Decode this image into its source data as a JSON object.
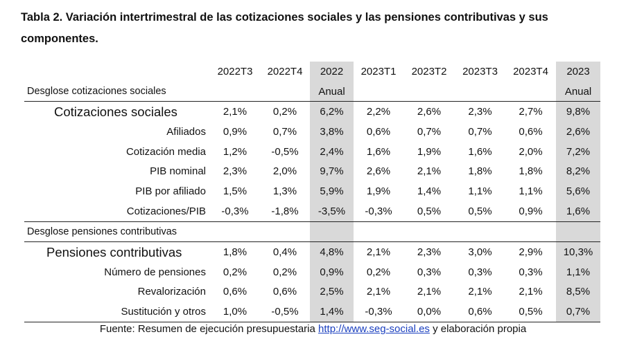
{
  "title": "Tabla 2. Variación intertrimestral de las cotizaciones sociales y las pensiones contributivas y sus componentes.",
  "columns": [
    {
      "l1": "2022T3",
      "l2": ""
    },
    {
      "l1": "2022T4",
      "l2": ""
    },
    {
      "l1": "2022",
      "l2": "Anual"
    },
    {
      "l1": "2023T1",
      "l2": ""
    },
    {
      "l1": "2023T2",
      "l2": ""
    },
    {
      "l1": "2023T3",
      "l2": ""
    },
    {
      "l1": "2023T4",
      "l2": ""
    },
    {
      "l1": "2023",
      "l2": "Anual"
    }
  ],
  "sections": [
    {
      "header": "Desglose cotizaciones sociales",
      "rows": [
        {
          "label": "Cotizaciones sociales",
          "main": true,
          "values": [
            "2,1%",
            "0,2%",
            "6,2%",
            "2,2%",
            "2,6%",
            "2,3%",
            "2,7%",
            "9,8%"
          ]
        },
        {
          "label": "Afiliados",
          "values": [
            "0,9%",
            "0,7%",
            "3,8%",
            "0,6%",
            "0,7%",
            "0,7%",
            "0,6%",
            "2,6%"
          ]
        },
        {
          "label": "Cotización media",
          "values": [
            "1,2%",
            "-0,5%",
            "2,4%",
            "1,6%",
            "1,9%",
            "1,6%",
            "2,0%",
            "7,2%"
          ]
        },
        {
          "label": "PIB nominal",
          "values": [
            "2,3%",
            "2,0%",
            "9,7%",
            "2,6%",
            "2,1%",
            "1,8%",
            "1,8%",
            "8,2%"
          ]
        },
        {
          "label": "PIB por afiliado",
          "values": [
            "1,5%",
            "1,3%",
            "5,9%",
            "1,9%",
            "1,4%",
            "1,1%",
            "1,1%",
            "5,6%"
          ]
        },
        {
          "label": "Cotizaciones/PIB",
          "values": [
            "-0,3%",
            "-1,8%",
            "-3,5%",
            "-0,3%",
            "0,5%",
            "0,5%",
            "0,9%",
            "1,6%"
          ]
        }
      ]
    },
    {
      "header": "Desglose pensiones contributivas",
      "rows": [
        {
          "label": "Pensiones contributivas",
          "main": true,
          "values": [
            "1,8%",
            "0,4%",
            "4,8%",
            "2,1%",
            "2,3%",
            "3,0%",
            "2,9%",
            "10,3%"
          ]
        },
        {
          "label": "Número de pensiones",
          "values": [
            "0,2%",
            "0,2%",
            "0,9%",
            "0,2%",
            "0,3%",
            "0,3%",
            "0,3%",
            "1,1%"
          ]
        },
        {
          "label": "Revalorización",
          "values": [
            "0,6%",
            "0,6%",
            "2,5%",
            "2,1%",
            "2,1%",
            "2,1%",
            "2,1%",
            "8,5%"
          ]
        },
        {
          "label": "Sustitución y otros",
          "values": [
            "1,0%",
            "-0,5%",
            "1,4%",
            "-0,3%",
            "0,0%",
            "0,6%",
            "0,5%",
            "0,7%"
          ]
        }
      ]
    }
  ],
  "footer": {
    "prefix": "Fuente: Resumen de ejecución presupuestaria ",
    "link": "http://www.seg-social.es",
    "suffix": " y elaboración propia"
  },
  "colors": {
    "shade": "#d9d9d9",
    "link": "#1a3fbf"
  }
}
